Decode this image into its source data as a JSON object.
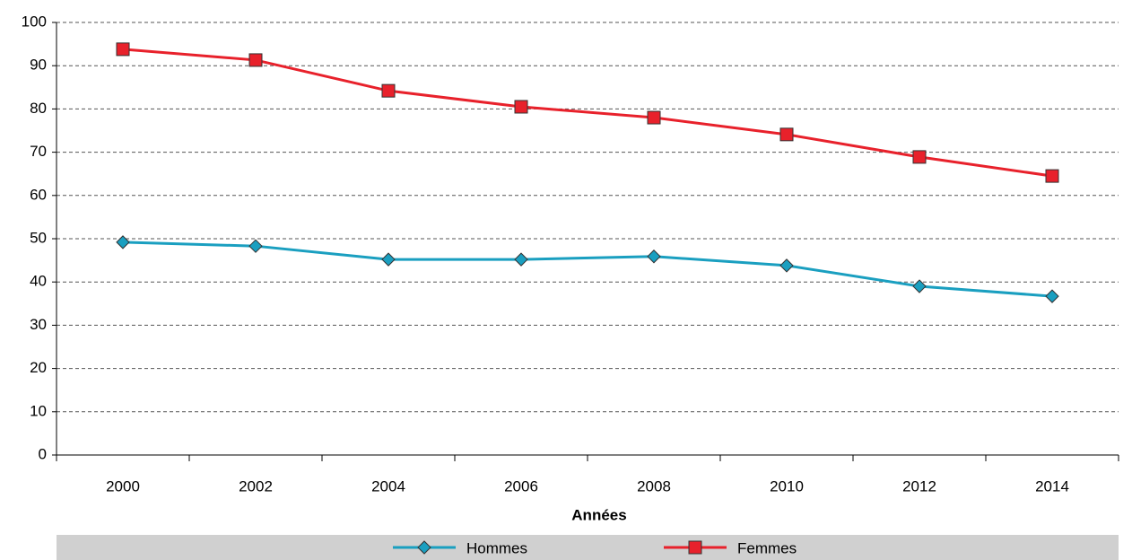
{
  "chart_data": {
    "type": "line",
    "x_label": "Années",
    "categories": [
      "2000",
      "2002",
      "2004",
      "2006",
      "2008",
      "2010",
      "2012",
      "2014"
    ],
    "series": [
      {
        "name": "Hommes",
        "color": "#1a9fc0",
        "marker": "diamond",
        "values": [
          49.2,
          48.3,
          45.2,
          45.2,
          45.9,
          43.8,
          39.0,
          36.7
        ]
      },
      {
        "name": "Femmes",
        "color": "#e8212b",
        "marker": "square",
        "values": [
          93.8,
          91.3,
          84.2,
          80.5,
          78.0,
          74.1,
          68.9,
          64.5
        ]
      }
    ],
    "ylim": [
      0,
      100
    ],
    "yticks": [
      0,
      10,
      20,
      30,
      40,
      50,
      60,
      70,
      80,
      90,
      100
    ],
    "grid": true,
    "legend": "bottom"
  }
}
